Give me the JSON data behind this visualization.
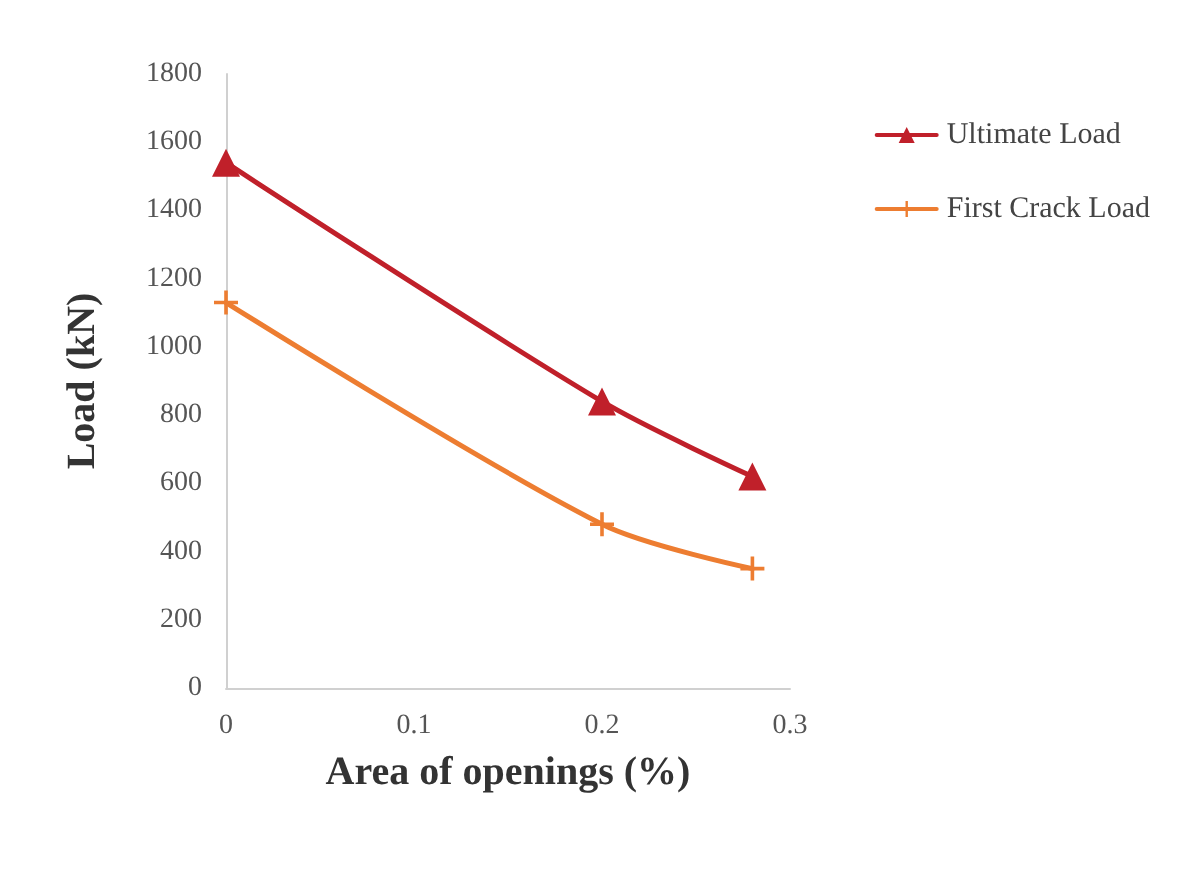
{
  "chart_data": {
    "type": "line",
    "xlabel": "Area of openings (%)",
    "ylabel": "Load (kN)",
    "xlim": [
      0,
      0.3
    ],
    "xticks": [
      0,
      0.1,
      0.2,
      0.3
    ],
    "ylim": [
      0,
      1800
    ],
    "yticks": [
      0,
      200,
      400,
      600,
      800,
      1000,
      1200,
      1400,
      1600,
      1800
    ],
    "x": [
      0,
      0.2,
      0.28
    ],
    "grid": false,
    "legend": "top right",
    "line_style": "solid",
    "series": [
      {
        "name": "Ultimate Load",
        "color": "#c0202a",
        "marker": "triangle",
        "values": [
          1540,
          840,
          620
        ]
      },
      {
        "name": "First Crack Load",
        "color": "#ed7d31",
        "marker": "cross",
        "values": [
          1130,
          480,
          350
        ]
      }
    ]
  }
}
